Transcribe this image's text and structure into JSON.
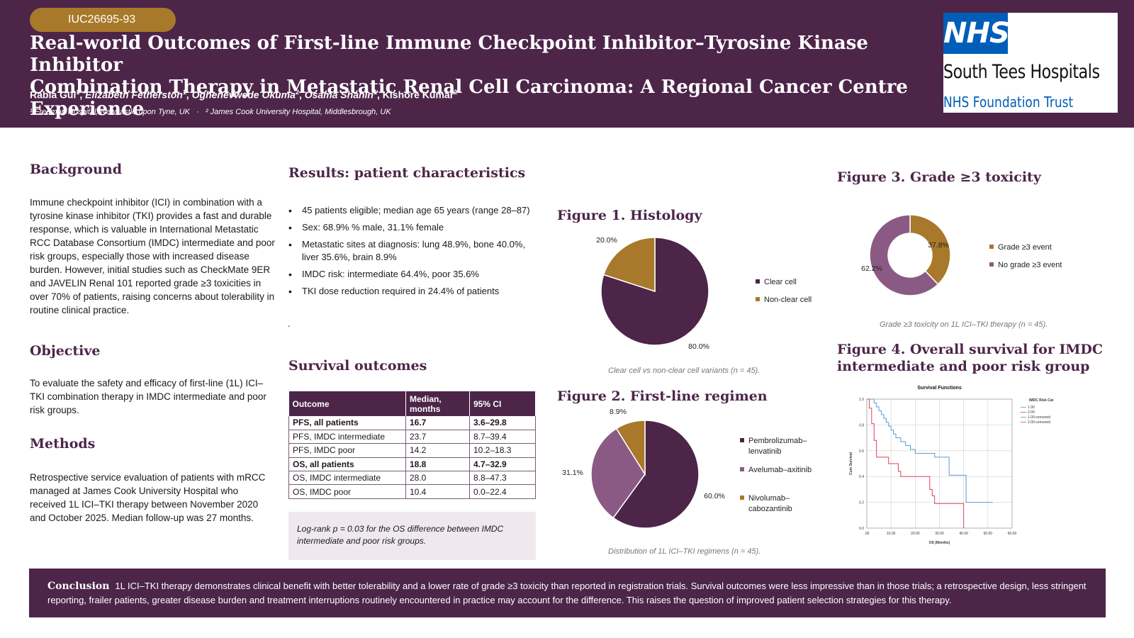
{
  "header": {
    "poster_id": "IUC26695-93",
    "title_line1": "Real-world Outcomes of First-line Immune Checkpoint Inhibitor–Tyrosine Kinase Inhibitor",
    "title_line2": "Combination Therapy in Metastatic Renal Cell Carcinoma: A Regional Cancer Centre Experience",
    "authors": [
      {
        "name": "Rabia Gul",
        "sup": "1",
        "italic": false
      },
      {
        "name": "Elizabeth Fetherston",
        "sup": "1",
        "italic": true
      },
      {
        "name": "Oghenevwede Okuma",
        "sup": "2",
        "italic": true
      },
      {
        "name": "Osama Shahin",
        "sup": "1",
        "italic": true
      },
      {
        "name": "Kishore Kumar",
        "sup": "2",
        "italic": false
      }
    ],
    "affiliation1": "¹ Freeman Hospital, Newcastle upon Tyne, UK",
    "affiliation_sep": "·",
    "affiliation2": "² James Cook University Hospital, Middlesbrough, UK"
  },
  "logo": {
    "mark": "NHS",
    "org_line1": "South Tees Hospitals",
    "org_line2": "NHS Foundation Trust",
    "mark_color": "#005eb8"
  },
  "background": {
    "heading": "Background",
    "text": "Immune checkpoint inhibitor (ICI) in combination with a tyrosine kinase inhibitor (TKI) provides a fast and durable response, which is valuable in International Metastatic RCC Database Consortium (IMDC) intermediate and poor risk groups, especially those with increased disease burden. However, initial studies such as CheckMate 9ER and JAVELIN Renal 101 reported grade ≥3 toxicities in over 70% of patients, raising concerns about tolerability in routine clinical practice."
  },
  "objective": {
    "heading": "Objective",
    "text": "To evaluate the safety and efficacy of first-line (1L) ICI–TKI combination therapy in IMDC intermediate and poor risk groups."
  },
  "methods": {
    "heading": "Methods",
    "text": "Retrospective service evaluation of patients with mRCC managed at James Cook University Hospital who received 1L ICI–TKI therapy between November 2020 and October 2025. Median follow-up was 27 months."
  },
  "results": {
    "heading": "Results: patient characteristics",
    "bullets": [
      "45 patients eligible; median age 65 years (range 28–87)",
      "Sex: 68.9% % male, 31.1% female",
      "Metastatic sites at diagnosis: lung 48.9%, bone 40.0%, liver 35.6%, brain 8.9%",
      "IMDC risk: intermediate 64.4%, poor 35.6%",
      "TKI dose reduction required in 24.4% of patients"
    ],
    "stray": "."
  },
  "survival": {
    "heading": "Survival outcomes",
    "columns": [
      "Outcome",
      "Median, months",
      "95% CI"
    ],
    "rows": [
      {
        "outcome": "PFS, all patients",
        "median": "16.7",
        "ci": "3.6–29.8",
        "bold": true
      },
      {
        "outcome": "PFS, IMDC intermediate",
        "median": "23.7",
        "ci": "8.7–39.4",
        "bold": false
      },
      {
        "outcome": "PFS, IMDC poor",
        "median": "14.2",
        "ci": "10.2–18.3",
        "bold": false
      },
      {
        "outcome": "OS, all patients",
        "median": "18.8",
        "ci": "4.7–32.9",
        "bold": true
      },
      {
        "outcome": "OS, IMDC intermediate",
        "median": "28.0",
        "ci": "8.8–47.3",
        "bold": false
      },
      {
        "outcome": "OS, IMDC poor",
        "median": "10.4",
        "ci": "0.0–22.4",
        "bold": false
      }
    ],
    "note": "Log-rank p = 0.03 for the OS difference between IMDC intermediate and poor risk groups."
  },
  "figure1": {
    "heading": "Figure 1. Histology",
    "caption": "Clear cell vs non-clear cell variants (n = 45)."
  },
  "figure2": {
    "heading": "Figure 2. First-line regimen",
    "caption": "Distribution of 1L ICI–TKI regimens (n = 45)."
  },
  "figure3": {
    "heading": "Figure 3. Grade ≥3 toxicity",
    "caption": "Grade ≥3 toxicity on 1L ICI–TKI therapy (n = 45)."
  },
  "figure4": {
    "heading_line1": "Figure 4. Overall  survival for IMDC",
    "heading_line2": "intermediate and poor risk group"
  },
  "conclusion": {
    "label": "Conclusion",
    "text": "1L ICI–TKI therapy demonstrates clinical benefit with better tolerability and a lower rate of grade ≥3 toxicity than reported in registration trials. Survival outcomes were less impressive than in those trials; a retrospective design, less stringent reporting, frailer patients, greater disease burden and treatment interruptions routinely encountered in practice may account for the difference. This raises the question of improved patient selection strategies for this therapy."
  },
  "chart_data": [
    {
      "type": "pie",
      "categories": [
        "Clear cell",
        "Non-clear cell"
      ],
      "values": [
        80.0,
        20.0
      ],
      "labels": [
        "80.0%",
        "20.0%"
      ],
      "colors": [
        "#4c2549",
        "#a8792a"
      ],
      "legend": "right"
    },
    {
      "type": "pie",
      "categories": [
        "Pembrolizumab–lenvatinib",
        "Avelumab–axitinib",
        "Nivolumab–cabozantinib"
      ],
      "legend_lines": [
        [
          "Pembrolizumab–",
          "lenvatinib"
        ],
        [
          "Avelumab–axitinib"
        ],
        [
          "Nivolumab–",
          "cabozantinib"
        ]
      ],
      "values": [
        60.0,
        31.1,
        8.9
      ],
      "labels": [
        "60.0%",
        "31.1%",
        "8.9%"
      ],
      "colors": [
        "#4c2549",
        "#8a5a84",
        "#a8792a"
      ],
      "legend": "right"
    },
    {
      "type": "pie",
      "subtype": "donut",
      "categories": [
        "Grade ≥3 event",
        "No grade ≥3 event"
      ],
      "values": [
        37.8,
        62.2
      ],
      "labels": [
        "37.8%",
        "62.2%"
      ],
      "colors": [
        "#a8792a",
        "#8a5a84"
      ],
      "legend": "right"
    },
    {
      "type": "line",
      "subtype": "kaplan-meier",
      "title": "Survival Functions",
      "xlabel": "OS (Months)",
      "ylabel": "Cum Survival",
      "xlim": [
        0,
        60
      ],
      "ylim": [
        0,
        1
      ],
      "x_ticks": [
        ".00",
        "10.00",
        "20.00",
        "30.00",
        "40.00",
        "50.00",
        "60.00"
      ],
      "y_ticks": [
        "0.0",
        "0.2",
        "0.4",
        "0.6",
        "0.8",
        "1.0"
      ],
      "legend_title": "IMDC Risk Cat",
      "legend": "top-right",
      "series": [
        {
          "name": "1.00",
          "color": "#5b9bd5",
          "points": [
            [
              0,
              1.0
            ],
            [
              2,
              1.0
            ],
            [
              3,
              0.97
            ],
            [
              4,
              0.94
            ],
            [
              5,
              0.91
            ],
            [
              6,
              0.88
            ],
            [
              7,
              0.85
            ],
            [
              8,
              0.82
            ],
            [
              9,
              0.79
            ],
            [
              10,
              0.76
            ],
            [
              11,
              0.73
            ],
            [
              12,
              0.7
            ],
            [
              14,
              0.67
            ],
            [
              16,
              0.64
            ],
            [
              18,
              0.61
            ],
            [
              20,
              0.58
            ],
            [
              28,
              0.55
            ],
            [
              34,
              0.41
            ],
            [
              40,
              0.41
            ],
            [
              41,
              0.2
            ],
            [
              52,
              0.2
            ]
          ]
        },
        {
          "name": "2.00",
          "color": "#e0405a",
          "points": [
            [
              0,
              1.0
            ],
            [
              1,
              0.93
            ],
            [
              2,
              0.81
            ],
            [
              3,
              0.68
            ],
            [
              4,
              0.55
            ],
            [
              8,
              0.55
            ],
            [
              9,
              0.5
            ],
            [
              13,
              0.44
            ],
            [
              14,
              0.4
            ],
            [
              25,
              0.4
            ],
            [
              26,
              0.3
            ],
            [
              27,
              0.25
            ],
            [
              28,
              0.19
            ],
            [
              39,
              0.19
            ],
            [
              40,
              0.0
            ]
          ]
        }
      ],
      "censored_legend": [
        "1.00-censored",
        "2.00-censored"
      ]
    }
  ]
}
